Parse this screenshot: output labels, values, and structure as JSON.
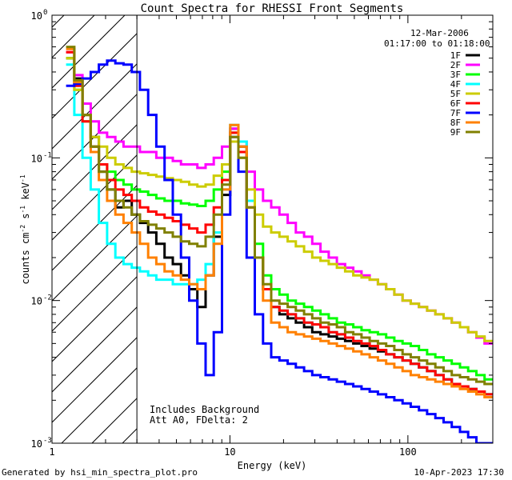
{
  "chart_data": {
    "type": "line",
    "title": "Count Spectra for RHESSI Front Segments",
    "xlabel": "Energy (keV)",
    "ylabel_parts": [
      "counts cm",
      "-2",
      " s",
      "-1",
      " keV",
      "-1"
    ],
    "x_scale": "log",
    "y_scale": "log",
    "xlim": [
      1,
      300
    ],
    "ylim": [
      0.001,
      1
    ],
    "x_ticks": [
      {
        "value": 1,
        "label": "1"
      },
      {
        "value": 10,
        "label": "10"
      },
      {
        "value": 100,
        "label": "100"
      }
    ],
    "y_ticks": [
      {
        "value": 1,
        "mant": "10",
        "exp": "0"
      },
      {
        "value": 0.1,
        "mant": "10",
        "exp": "-1"
      },
      {
        "value": 0.01,
        "mant": "10",
        "exp": "-2"
      },
      {
        "value": 0.001,
        "mant": "10",
        "exp": "-3"
      }
    ],
    "date": "12-Mar-2006",
    "time_range": "01:17:00 to 01:18:00",
    "annotation_lines": [
      "Includes Background",
      "Att A0, FDelta: 2"
    ],
    "shaded_below_energy": 3,
    "series": [
      {
        "name": "1F",
        "color": "#000000",
        "values": [
          0.5,
          0.36,
          0.2,
          0.14,
          0.08,
          0.06,
          0.045,
          0.05,
          0.04,
          0.035,
          0.03,
          0.025,
          0.02,
          0.018,
          0.015,
          0.012,
          0.009,
          0.015,
          0.028,
          0.055,
          0.16,
          0.12,
          0.05,
          0.02,
          0.012,
          0.009,
          0.008,
          0.0075,
          0.007,
          0.0065,
          0.006,
          0.0058,
          0.0056,
          0.0054,
          0.0052,
          0.005,
          0.0048,
          0.0046,
          0.0044,
          0.0042,
          0.004,
          0.0038,
          0.0036,
          0.0034,
          0.0032,
          0.003,
          0.0028,
          0.0026,
          0.0025,
          0.0024,
          0.0023,
          0.0022
        ]
      },
      {
        "name": "2F",
        "color": "#ff00ff",
        "values": [
          0.55,
          0.38,
          0.24,
          0.18,
          0.15,
          0.14,
          0.13,
          0.12,
          0.12,
          0.11,
          0.11,
          0.1,
          0.1,
          0.095,
          0.09,
          0.09,
          0.085,
          0.09,
          0.1,
          0.12,
          0.16,
          0.13,
          0.08,
          0.06,
          0.05,
          0.045,
          0.04,
          0.035,
          0.03,
          0.028,
          0.025,
          0.022,
          0.02,
          0.018,
          0.017,
          0.016,
          0.015,
          0.014,
          0.013,
          0.012,
          0.011,
          0.01,
          0.0095,
          0.009,
          0.0085,
          0.008,
          0.0075,
          0.007,
          0.0065,
          0.006,
          0.0055,
          0.005
        ]
      },
      {
        "name": "3F",
        "color": "#00ff00",
        "values": [
          0.5,
          0.3,
          0.18,
          0.12,
          0.09,
          0.08,
          0.07,
          0.065,
          0.06,
          0.058,
          0.055,
          0.052,
          0.05,
          0.05,
          0.048,
          0.047,
          0.046,
          0.05,
          0.06,
          0.08,
          0.15,
          0.11,
          0.05,
          0.025,
          0.015,
          0.012,
          0.011,
          0.01,
          0.0095,
          0.009,
          0.0085,
          0.008,
          0.0075,
          0.007,
          0.0068,
          0.0065,
          0.0062,
          0.006,
          0.0058,
          0.0055,
          0.0052,
          0.005,
          0.0048,
          0.0045,
          0.0042,
          0.004,
          0.0038,
          0.0036,
          0.0034,
          0.0032,
          0.003,
          0.0028
        ]
      },
      {
        "name": "4F",
        "color": "#00ffff",
        "values": [
          0.45,
          0.2,
          0.1,
          0.06,
          0.035,
          0.025,
          0.02,
          0.018,
          0.017,
          0.016,
          0.015,
          0.014,
          0.014,
          0.013,
          0.013,
          0.013,
          0.014,
          0.018,
          0.03,
          0.06,
          0.17,
          0.13,
          0.05,
          0.02,
          0.012,
          0.009,
          0.0085,
          0.008,
          0.0075,
          0.007,
          0.0068,
          0.0065,
          0.006,
          0.0058,
          0.0055,
          0.0052,
          0.005,
          0.0048,
          0.0045,
          0.0042,
          0.004,
          0.0038,
          0.0036,
          0.0034,
          0.0032,
          0.003,
          0.0028,
          0.0026,
          0.0025,
          0.0024,
          0.0023,
          0.0022
        ]
      },
      {
        "name": "5F",
        "color": "#cccc00",
        "values": [
          0.5,
          0.3,
          0.2,
          0.14,
          0.12,
          0.1,
          0.09,
          0.085,
          0.08,
          0.078,
          0.076,
          0.074,
          0.072,
          0.07,
          0.068,
          0.065,
          0.063,
          0.065,
          0.075,
          0.09,
          0.13,
          0.1,
          0.06,
          0.04,
          0.033,
          0.03,
          0.028,
          0.026,
          0.024,
          0.022,
          0.02,
          0.019,
          0.018,
          0.017,
          0.016,
          0.015,
          0.0145,
          0.014,
          0.013,
          0.012,
          0.011,
          0.01,
          0.0095,
          0.009,
          0.0085,
          0.008,
          0.0075,
          0.007,
          0.0065,
          0.006,
          0.0056,
          0.0052
        ]
      },
      {
        "name": "6F",
        "color": "#ff0000",
        "values": [
          0.55,
          0.32,
          0.18,
          0.12,
          0.09,
          0.07,
          0.06,
          0.055,
          0.05,
          0.045,
          0.042,
          0.04,
          0.038,
          0.036,
          0.034,
          0.032,
          0.03,
          0.034,
          0.045,
          0.07,
          0.15,
          0.11,
          0.045,
          0.02,
          0.012,
          0.009,
          0.0085,
          0.008,
          0.0075,
          0.007,
          0.0068,
          0.0065,
          0.006,
          0.0058,
          0.0055,
          0.0052,
          0.005,
          0.0048,
          0.0045,
          0.0042,
          0.004,
          0.0038,
          0.0036,
          0.0034,
          0.0032,
          0.003,
          0.0028,
          0.0026,
          0.0025,
          0.0024,
          0.0023,
          0.0022
        ]
      },
      {
        "name": "7F",
        "color": "#0000ff",
        "values": [
          0.32,
          0.33,
          0.36,
          0.4,
          0.45,
          0.48,
          0.46,
          0.45,
          0.4,
          0.3,
          0.2,
          0.12,
          0.07,
          0.04,
          0.02,
          0.01,
          0.005,
          0.003,
          0.006,
          0.04,
          0.14,
          0.08,
          0.02,
          0.008,
          0.005,
          0.004,
          0.0038,
          0.0036,
          0.0034,
          0.0032,
          0.003,
          0.0029,
          0.0028,
          0.0027,
          0.0026,
          0.0025,
          0.0024,
          0.0023,
          0.0022,
          0.0021,
          0.002,
          0.0019,
          0.0018,
          0.0017,
          0.0016,
          0.0015,
          0.0014,
          0.0013,
          0.0012,
          0.0011,
          0.001,
          0.001
        ]
      },
      {
        "name": "8F",
        "color": "#ff8000",
        "values": [
          0.58,
          0.34,
          0.2,
          0.11,
          0.07,
          0.05,
          0.04,
          0.035,
          0.03,
          0.025,
          0.02,
          0.018,
          0.016,
          0.015,
          0.014,
          0.013,
          0.012,
          0.015,
          0.025,
          0.06,
          0.17,
          0.12,
          0.045,
          0.02,
          0.01,
          0.007,
          0.0065,
          0.006,
          0.0058,
          0.0056,
          0.0054,
          0.0052,
          0.005,
          0.0048,
          0.0046,
          0.0044,
          0.0042,
          0.004,
          0.0038,
          0.0036,
          0.0034,
          0.0032,
          0.003,
          0.0029,
          0.0028,
          0.0027,
          0.0026,
          0.0025,
          0.0024,
          0.0023,
          0.0022,
          0.0021
        ]
      },
      {
        "name": "9F",
        "color": "#808000",
        "values": [
          0.6,
          0.35,
          0.2,
          0.12,
          0.08,
          0.06,
          0.05,
          0.045,
          0.04,
          0.036,
          0.034,
          0.032,
          0.03,
          0.028,
          0.026,
          0.025,
          0.024,
          0.028,
          0.04,
          0.065,
          0.14,
          0.1,
          0.045,
          0.02,
          0.013,
          0.01,
          0.0095,
          0.009,
          0.0085,
          0.008,
          0.0075,
          0.007,
          0.0068,
          0.0065,
          0.006,
          0.0058,
          0.0055,
          0.0052,
          0.005,
          0.0048,
          0.0045,
          0.0042,
          0.004,
          0.0038,
          0.0036,
          0.0034,
          0.0032,
          0.003,
          0.0029,
          0.0028,
          0.0027,
          0.0026
        ]
      }
    ]
  },
  "footer": {
    "left": "Generated by hsi_min_spectra_plot.pro",
    "right": "10-Apr-2023 17:30"
  }
}
